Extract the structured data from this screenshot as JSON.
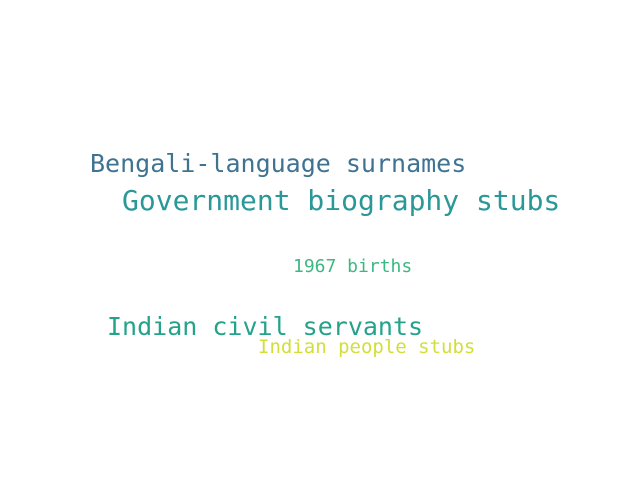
{
  "word_cloud": {
    "words": [
      {
        "text": "Bengali-language surnames",
        "color": "#3f7391"
      },
      {
        "text": "Government biography stubs",
        "color": "#2b9898"
      },
      {
        "text": "1967 births",
        "color": "#3db882"
      },
      {
        "text": "Indian civil servants",
        "color": "#24a28a"
      },
      {
        "text": "Indian people stubs",
        "color": "#d2df38"
      }
    ]
  }
}
